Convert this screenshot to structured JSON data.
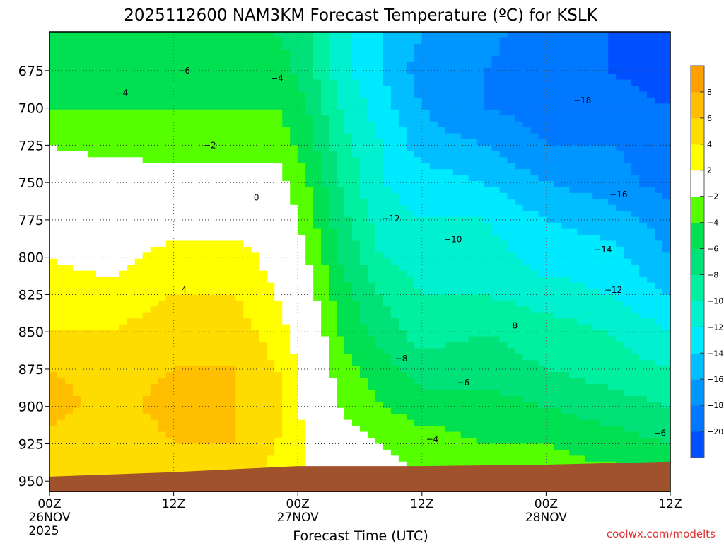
{
  "chart_data": {
    "type": "heatmap",
    "title": "2025112600 NAM3KM Forecast Temperature (ºC) for KSLK",
    "xlabel": "Forecast Time (UTC)",
    "ylabel": "",
    "credit": "coolwx.com/modelts",
    "xlim": [
      0,
      60
    ],
    "ylim": [
      957,
      649
    ],
    "x_ticks": [
      {
        "h": 0,
        "l1": "00Z",
        "l2": "26NOV",
        "l3": "2025"
      },
      {
        "h": 12,
        "l1": "12Z"
      },
      {
        "h": 24,
        "l1": "00Z",
        "l2": "27NOV"
      },
      {
        "h": 36,
        "l1": "12Z"
      },
      {
        "h": 48,
        "l1": "00Z",
        "l2": "28NOV"
      },
      {
        "h": 60,
        "l1": "12Z"
      }
    ],
    "y_ticks": [
      675,
      700,
      725,
      750,
      775,
      800,
      825,
      850,
      875,
      900,
      925,
      950
    ],
    "hours": [
      0,
      6,
      12,
      18,
      22,
      25,
      28,
      32,
      36,
      42,
      48,
      54,
      60
    ],
    "levels": [
      650,
      675,
      700,
      725,
      750,
      775,
      800,
      825,
      850,
      875,
      900,
      925,
      950
    ],
    "temps": [
      [
        -6,
        -5,
        -4,
        -2,
        0,
        1,
        2,
        3,
        4,
        6,
        7,
        5,
        4
      ],
      [
        -5,
        -5,
        -4,
        -3,
        0,
        0,
        1,
        3,
        4,
        5,
        5,
        4,
        4
      ],
      [
        -5,
        -6,
        -4,
        -3,
        -1,
        1,
        3,
        4,
        5,
        6,
        7,
        6,
        4
      ],
      [
        -5,
        -5,
        -4,
        -3,
        -1,
        1,
        3,
        4,
        5,
        6,
        6,
        6,
        5
      ],
      [
        -6,
        -5,
        -4,
        -3,
        -1,
        0,
        1,
        2,
        3,
        4,
        5,
        4,
        3
      ],
      [
        -7,
        -7,
        -6,
        -5,
        -4,
        -3,
        -2,
        -1,
        0,
        1,
        1,
        2,
        2
      ],
      [
        -11,
        -11,
        -10,
        -9,
        -8,
        -7,
        -6,
        -5,
        -4,
        -3,
        -2,
        -1,
        0
      ],
      [
        -14,
        -14,
        -13,
        -12,
        -12,
        -11,
        -10,
        -8,
        -7,
        -5,
        -4,
        -2,
        -1
      ],
      [
        -16,
        -17,
        -16,
        -15,
        -13,
        -12,
        -11,
        -10,
        -9,
        -7,
        -5,
        -3,
        -2
      ],
      [
        -17,
        -18,
        -18,
        -16,
        -14,
        -12,
        -11,
        -10,
        -8,
        -7,
        -5,
        -4,
        -2
      ],
      [
        -20,
        -20,
        -19,
        -18,
        -16,
        -14,
        -13,
        -11,
        -9,
        -8,
        -6,
        -4,
        -3
      ],
      [
        -20,
        -20,
        -19,
        -18,
        -17,
        -15,
        -13,
        -12,
        -10,
        -9,
        -7,
        -5,
        -3
      ],
      [
        -21,
        -21,
        -20,
        -19,
        -19,
        -17,
        -16,
        -14,
        -12,
        -10,
        -8,
        -6,
        -4
      ]
    ],
    "terrain": [
      [
        0,
        947
      ],
      [
        12,
        944
      ],
      [
        24,
        940
      ],
      [
        36,
        940
      ],
      [
        48,
        939
      ],
      [
        60,
        937
      ]
    ],
    "contour_labels": [
      {
        "t": "-6",
        "h": 13,
        "p": 675
      },
      {
        "t": "-4",
        "h": 22,
        "p": 680
      },
      {
        "t": "-4",
        "h": 7,
        "p": 690
      },
      {
        "t": "-2",
        "h": 15.5,
        "p": 725
      },
      {
        "t": "0",
        "h": 20,
        "p": 760
      },
      {
        "t": "4",
        "h": 13,
        "p": 822
      },
      {
        "t": "-12",
        "h": 33,
        "p": 774
      },
      {
        "t": "-10",
        "h": 39,
        "p": 788
      },
      {
        "t": "-8",
        "h": 34,
        "p": 868
      },
      {
        "t": "8",
        "h": 45,
        "p": 846
      },
      {
        "t": "-6",
        "h": 40,
        "p": 884
      },
      {
        "t": "-4",
        "h": 37,
        "p": 922
      },
      {
        "t": "-18",
        "h": 51.5,
        "p": 695
      },
      {
        "t": "-16",
        "h": 55,
        "p": 758
      },
      {
        "t": "-14",
        "h": 53.5,
        "p": 795
      },
      {
        "t": "-12",
        "h": 54.5,
        "p": 822
      },
      {
        "t": "-6",
        "h": 59,
        "p": 918
      }
    ],
    "colorbar": {
      "bounds": [
        -22,
        -20,
        -18,
        -16,
        -14,
        -12,
        -10,
        -8,
        -6,
        -4,
        -2,
        2,
        4,
        6,
        8,
        10
      ],
      "colors": [
        "#0050ff",
        "#0078ff",
        "#0096ff",
        "#00beff",
        "#00eaff",
        "#00f0d0",
        "#00f0a0",
        "#00e278",
        "#00e050",
        "#55ff00",
        "#ffffff",
        "#ffff00",
        "#ffdc00",
        "#ffbe00",
        "#ffa000"
      ],
      "labels": [
        "-20",
        "-18",
        "-16",
        "-14",
        "-12",
        "-10",
        "-8",
        "-6",
        "-4",
        "-2",
        "2",
        "4",
        "6",
        "8"
      ]
    },
    "terrain_color": "#a0522d"
  }
}
